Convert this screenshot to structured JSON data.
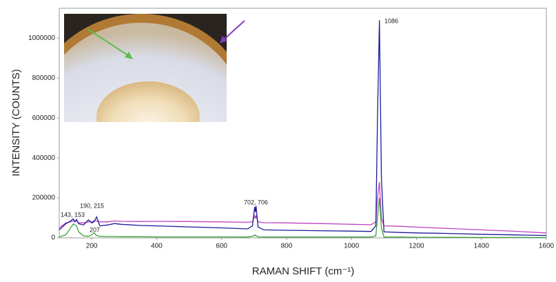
{
  "chart_data": {
    "type": "line",
    "ylabel": "INTENSITY (COUNTS)",
    "xlabel": "RAMAN SHIFT (cm⁻¹)",
    "x": [
      100,
      120,
      135,
      143,
      148,
      153,
      160,
      175,
      190,
      200,
      207,
      215,
      225,
      250,
      270,
      290,
      350,
      400,
      500,
      600,
      680,
      695,
      702,
      704,
      706,
      712,
      730,
      800,
      900,
      1000,
      1060,
      1075,
      1080,
      1086,
      1092,
      1100,
      1150,
      1200,
      1300,
      1400,
      1500,
      1600
    ],
    "series": [
      {
        "color": "#c040c0",
        "values": [
          50000,
          75000,
          80000,
          85000,
          85000,
          85000,
          75000,
          75000,
          80000,
          80000,
          85000,
          85000,
          80000,
          80000,
          85000,
          83000,
          82000,
          83000,
          82000,
          80000,
          78000,
          80000,
          110000,
          100000,
          110000,
          80000,
          76000,
          75000,
          72000,
          68000,
          66000,
          80000,
          200000,
          280000,
          100000,
          60000,
          58000,
          54000,
          47000,
          40000,
          33000,
          25000
        ]
      },
      {
        "color": "#1a1a9a",
        "values": [
          40000,
          70000,
          85000,
          95000,
          80000,
          92000,
          70000,
          65000,
          90000,
          75000,
          80000,
          105000,
          60000,
          65000,
          72000,
          68000,
          62000,
          60000,
          55000,
          50000,
          45000,
          60000,
          155000,
          130000,
          160000,
          55000,
          40000,
          38000,
          36000,
          34000,
          32000,
          60000,
          600000,
          1090000,
          300000,
          30000,
          27000,
          25000,
          22000,
          18000,
          15000,
          12000
        ]
      },
      {
        "color": "#3aa03a",
        "values": [
          5000,
          15000,
          50000,
          70000,
          65000,
          60000,
          30000,
          10000,
          8000,
          15000,
          25000,
          12000,
          8000,
          7000,
          7000,
          6000,
          6000,
          5000,
          5000,
          5000,
          4000,
          8000,
          15000,
          10000,
          12000,
          5000,
          4000,
          4000,
          4000,
          4000,
          4000,
          10000,
          100000,
          200000,
          50000,
          4000,
          4000,
          3000,
          3000,
          2000,
          2000,
          2000
        ]
      }
    ],
    "annotations": [
      "1086",
      "702, 706",
      "143, 153",
      "190, 215",
      "207"
    ],
    "xlim": [
      100,
      1600
    ],
    "xticks": [
      200,
      400,
      600,
      800,
      1000,
      1200,
      1400,
      1600
    ],
    "ylim": [
      0,
      1150000
    ],
    "yticks": [
      0,
      200000,
      400000,
      600000,
      800000,
      1000000
    ]
  }
}
